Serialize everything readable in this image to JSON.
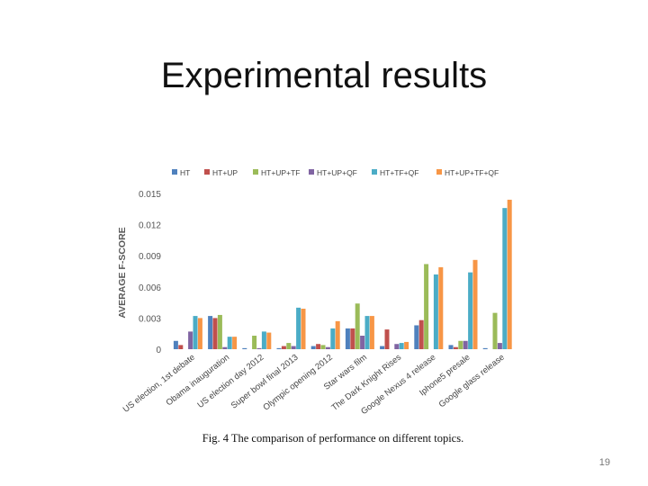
{
  "slide": {
    "title": "Experimental results",
    "caption_prefix": "Fig. 4",
    "caption_text": "The comparison of performance on different topics.",
    "page_number": "19"
  },
  "chart_data": {
    "type": "bar",
    "title": "",
    "xlabel": "",
    "ylabel": "AVERAGE F-SCORE",
    "ylim": [
      0,
      0.015
    ],
    "yticks": [
      "0",
      "0.003",
      "0.006",
      "0.009",
      "0.012",
      "0.015"
    ],
    "ytick_values": [
      0,
      0.003,
      0.006,
      0.009,
      0.012,
      0.015
    ],
    "grid": false,
    "legend_position": "top",
    "categories": [
      "US election, 1st debate",
      "Obama inauguration",
      "US election day 2012",
      "Super bowl final 2013",
      "Olympic opening 2012",
      "Star wars film",
      "The Dark Knight Rises",
      "Google Nexus 4 release",
      "Iphone5 presale",
      "Google glass release"
    ],
    "series": [
      {
        "name": "HT",
        "color": "#4F81BD",
        "values": [
          0.0008,
          0.0032,
          0.0001,
          0.0001,
          0.0003,
          0.002,
          0.0003,
          0.0023,
          0.0004,
          0.0001
        ]
      },
      {
        "name": "HT+UP",
        "color": "#C0504D",
        "values": [
          0.0004,
          0.003,
          0.0,
          0.0003,
          0.0005,
          0.002,
          0.0019,
          0.0028,
          0.0002,
          0.0
        ]
      },
      {
        "name": "HT+UP+TF",
        "color": "#9BBB59",
        "values": [
          0.0,
          0.0033,
          0.0013,
          0.0006,
          0.0004,
          0.0044,
          0.0,
          0.0082,
          0.0008,
          0.0035
        ]
      },
      {
        "name": "HT+UP+QF",
        "color": "#8064A2",
        "values": [
          0.0017,
          0.0002,
          0.0001,
          0.0003,
          0.0002,
          0.0013,
          0.0005,
          0.0,
          0.0008,
          0.0006
        ]
      },
      {
        "name": "HT+TF+QF",
        "color": "#4BACC6",
        "values": [
          0.0032,
          0.0012,
          0.0017,
          0.004,
          0.002,
          0.0032,
          0.0006,
          0.0072,
          0.0074,
          0.0136
        ]
      },
      {
        "name": "HT+UP+TF+QF",
        "color": "#F79646",
        "values": [
          0.003,
          0.0012,
          0.0016,
          0.0039,
          0.0027,
          0.0032,
          0.0007,
          0.0079,
          0.0086,
          0.0144
        ]
      }
    ]
  }
}
